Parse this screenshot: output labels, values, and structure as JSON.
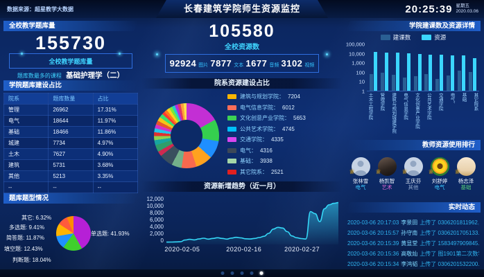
{
  "header": {
    "source": "数据来源：超星教学大数据",
    "title": "长春建筑学院师生资源监控",
    "time": "20:25:39",
    "weekday": "星期五",
    "date": "2020.03.06"
  },
  "left": {
    "panel1": {
      "title": "全校教学题库量",
      "value": "155730",
      "value_label": "全校教学题库量",
      "top_course_label": "题库数最多的课程",
      "top_course": "基础护理学（二）"
    },
    "panel2": {
      "title": "学院题库建设占比",
      "columns": [
        "院系",
        "题库数量",
        "占比"
      ],
      "rows": [
        [
          "管理",
          "26962",
          "17.31%"
        ],
        [
          "电气",
          "18644",
          "11.97%"
        ],
        [
          "基础",
          "18466",
          "11.86%"
        ],
        [
          "城建",
          "7734",
          "4.97%"
        ],
        [
          "土木",
          "7627",
          "4.90%"
        ],
        [
          "建筑",
          "5731",
          "3.68%"
        ],
        [
          "其他",
          "5213",
          "3.35%"
        ],
        [
          "--",
          "--",
          "--"
        ]
      ]
    }
  },
  "center": {
    "total_value": "105580",
    "total_label": "全校资源数",
    "stats": [
      {
        "value": "92924",
        "label": "图片"
      },
      {
        "value": "7877",
        "label": "文本"
      },
      {
        "value": "1677",
        "label": "音频"
      },
      {
        "value": "3102",
        "label": "视频"
      }
    ]
  },
  "right": {
    "teachers_title": "教师资源使用排行",
    "teachers": [
      {
        "name": "张林雪",
        "dept": "电气",
        "dept_color": "#38c8ff",
        "avatar": "person"
      },
      {
        "name": "杨凯智",
        "dept": "艺术",
        "dept_color": "#e86bd8",
        "avatar": "photo"
      },
      {
        "name": "王庆芬",
        "dept": "其他",
        "dept_color": "#8fa8cc",
        "avatar": "person"
      },
      {
        "name": "刘舒婷",
        "dept": "电气",
        "dept_color": "#38c8ff",
        "avatar": "sunflower"
      },
      {
        "name": "杨志泽",
        "dept": "基础",
        "dept_color": "#58d07a",
        "avatar": "cartoon"
      }
    ],
    "feed_title": "实时动态",
    "feed": [
      {
        "time": "2020-03-06 20:17:03",
        "name": "李景田",
        "action": "上传了",
        "file": "0306201811962.jpg"
      },
      {
        "time": "2020-03-06 20:15:57",
        "name": "孙守南",
        "action": "上传了",
        "file": "0306201705133.jpg"
      },
      {
        "time": "2020-03-06 20:15:39",
        "name": "黄显堂",
        "action": "上传了",
        "file": "1583497909845.jpg"
      },
      {
        "time": "2020-03-06 20:15:36",
        "name": "高敬灿",
        "action": "上传了",
        "file": "图1901第二次数学…"
      },
      {
        "time": "2020-03-06 20:15:34",
        "name": "李鸿韬",
        "action": "上传了",
        "file": "0306201532200.jpg"
      }
    ]
  },
  "pagination": {
    "count": 5,
    "active_index": 4
  },
  "chart_data": [
    {
      "id": "question-types",
      "type": "pie",
      "title": "题库题型情况",
      "labels": [
        "单选题",
        "判断题",
        "填空题",
        "简答题",
        "多选题",
        "其它"
      ],
      "values": [
        41.93,
        18.04,
        12.43,
        11.87,
        9.41,
        6.32
      ],
      "unit": "%",
      "colors": [
        "#b620d6",
        "#3fd02c",
        "#1e90ff",
        "#ffb400",
        "#ff5a3c",
        "#ff8c00"
      ],
      "start_angle": "top",
      "direction": "clockwise"
    },
    {
      "id": "dept-resource-share",
      "type": "pie",
      "subtype": "donut",
      "title": "院系资源建设占比",
      "legend_position": "right",
      "legend": [
        {
          "name": "建筑与规划学院",
          "value": 7204,
          "color": "#f7b500"
        },
        {
          "name": "电气信息学院",
          "value": 6012,
          "color": "#fa6e59"
        },
        {
          "name": "文化创意产业学院",
          "value": 5653,
          "color": "#3dd254"
        },
        {
          "name": "公共艺术学院",
          "value": 4745,
          "color": "#00c0fa"
        },
        {
          "name": "交通学院",
          "value": 4335,
          "color": "#d946ef"
        },
        {
          "name": "电气",
          "value": 4316,
          "color": "#3c4858"
        },
        {
          "name": "基础",
          "value": 3938,
          "color": "#a5d6a7"
        },
        {
          "name": "其它院系",
          "value": 2521,
          "color": "#e02020"
        }
      ],
      "display_slices": [
        [
          "#c32fd4",
          17
        ],
        [
          "#35cf4e",
          11
        ],
        [
          "#1f8fff",
          9
        ],
        [
          "#ffa21f",
          8.5
        ],
        [
          "#f9694e",
          7.5
        ],
        [
          "#74b08a",
          5
        ],
        [
          "#3a4f5e",
          7
        ],
        [
          "#cf2950",
          2.5
        ],
        [
          "#2f9e6a",
          3.5
        ],
        [
          "#18a5a0",
          2.5
        ],
        [
          "#8fd14f",
          2
        ],
        [
          "#e03030",
          2
        ],
        [
          "#27c5e8",
          2
        ],
        [
          "#d433c8",
          2
        ],
        [
          "#e8572b",
          2
        ],
        [
          "#f5c518",
          2
        ],
        [
          "#3adf70",
          2
        ],
        [
          "#ff3b30",
          1.5
        ],
        [
          "#ff7a1a",
          1.5
        ],
        [
          "#ffd21e",
          1.5
        ],
        [
          "#7ce838",
          1.5
        ],
        [
          "#25d0c4",
          1.5
        ],
        [
          "#b02fe0",
          1.5
        ],
        [
          "#e23a5f",
          1.5
        ],
        [
          "#ff9f3c",
          1.5
        ],
        [
          "#ffe04a",
          1.5
        ]
      ]
    },
    {
      "id": "resource-trend",
      "type": "area",
      "title": "资源新增趋势（近一月）",
      "line_color": "#35d8f8",
      "ylim": [
        0,
        12000
      ],
      "y_ticks": [
        "12,000",
        "10,000",
        "8,000",
        "6,000",
        "4,000",
        "2,000",
        "0"
      ],
      "x_ticks": [
        {
          "label": "2020-02-05",
          "pos": 0.05
        },
        {
          "label": "2020-02-16",
          "pos": 0.4
        },
        {
          "label": "2020-02-27",
          "pos": 0.73
        }
      ],
      "values": [
        280,
        300,
        320,
        360,
        850,
        1050,
        900,
        1150,
        1350,
        1100,
        1300,
        1500,
        1300,
        1100,
        1400,
        1600,
        1450,
        1200,
        1150,
        1300,
        1550,
        1900,
        2700,
        3900,
        4400,
        4200,
        3200,
        2000,
        1500,
        1250,
        1150,
        8800,
        8200,
        6000,
        9600,
        10700,
        11100,
        11300
      ]
    },
    {
      "id": "college-courses-resources",
      "type": "bar",
      "title": "学院建课数及资源详情",
      "scale": "log",
      "ylim": [
        1,
        100000
      ],
      "y_ticks": [
        "100,000",
        "10,000",
        "1,000",
        "100",
        "10",
        "1"
      ],
      "categories": [
        "土木工程学院",
        "管理学院",
        "建筑与规划城建学院",
        "电气信息学院",
        "文化创意产业学院",
        "公共艺术学院",
        "交通学院",
        "电气、",
        "基础",
        "其它院系"
      ],
      "series": [
        {
          "name": "建课数",
          "color": "#2a5f93",
          "values": [
            58,
            76,
            52,
            26,
            33,
            62,
            19,
            41,
            130,
            95
          ]
        },
        {
          "name": "资源",
          "color": "#3bd6ff",
          "values": [
            13000,
            11800,
            10400,
            9200,
            8000,
            7200,
            6500,
            6000,
            5400,
            2900
          ]
        }
      ]
    }
  ]
}
